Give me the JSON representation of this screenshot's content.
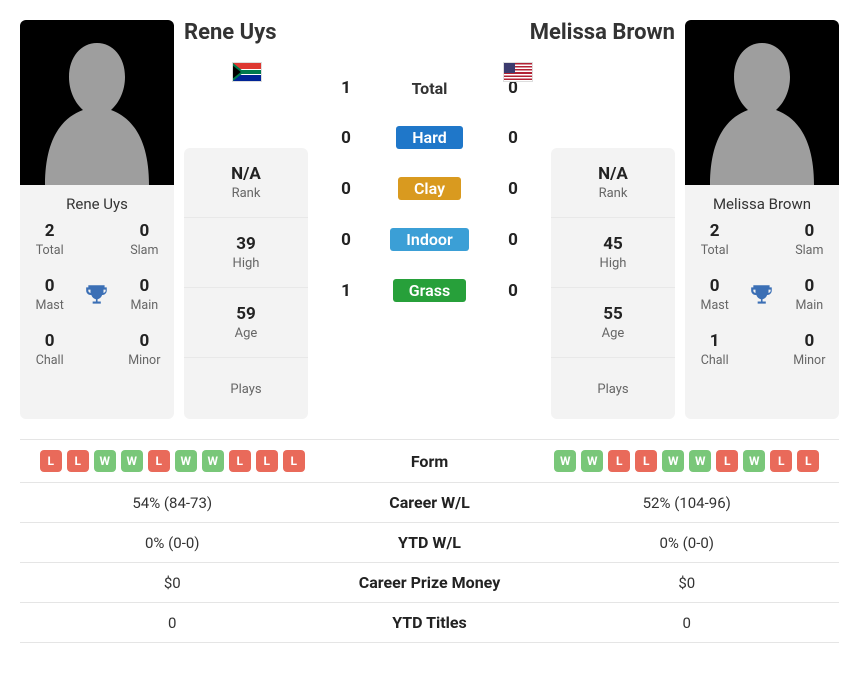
{
  "colors": {
    "hard": "#1f77c9",
    "clay": "#d99a1f",
    "indoor": "#3b9fd6",
    "grass": "#27a03a",
    "form_win": "#79c779",
    "form_loss": "#e96a5a",
    "trophy": "#3b6fb5",
    "silhouette": "#9e9e9e",
    "card_bg": "#f3f3f3"
  },
  "player1": {
    "name": "Rene Uys",
    "country_code": "ZA",
    "rank": "N/A",
    "high": "39",
    "age": "59",
    "plays": "",
    "titles": {
      "total": "2",
      "slam": "0",
      "mast": "0",
      "main": "0",
      "chall": "0",
      "minor": "0"
    },
    "form": [
      "L",
      "L",
      "W",
      "W",
      "L",
      "W",
      "W",
      "L",
      "L",
      "L"
    ],
    "career_wl": "54% (84-73)",
    "ytd_wl": "0% (0-0)",
    "prize": "$0",
    "ytd_titles": "0"
  },
  "player2": {
    "name": "Melissa Brown",
    "country_code": "US",
    "rank": "N/A",
    "high": "45",
    "age": "55",
    "plays": "",
    "titles": {
      "total": "2",
      "slam": "0",
      "mast": "0",
      "main": "0",
      "chall": "1",
      "minor": "0"
    },
    "form": [
      "W",
      "W",
      "L",
      "L",
      "W",
      "W",
      "L",
      "W",
      "L",
      "L"
    ],
    "career_wl": "52% (104-96)",
    "ytd_wl": "0% (0-0)",
    "prize": "$0",
    "ytd_titles": "0"
  },
  "h2h": {
    "total": {
      "label": "Total",
      "p1": "1",
      "p2": "0"
    },
    "surfaces": [
      {
        "label": "Hard",
        "color_key": "hard",
        "p1": "0",
        "p2": "0"
      },
      {
        "label": "Clay",
        "color_key": "clay",
        "p1": "0",
        "p2": "0"
      },
      {
        "label": "Indoor",
        "color_key": "indoor",
        "p1": "0",
        "p2": "0"
      },
      {
        "label": "Grass",
        "color_key": "grass",
        "p1": "1",
        "p2": "0"
      }
    ]
  },
  "labels": {
    "rank": "Rank",
    "high": "High",
    "age": "Age",
    "plays": "Plays",
    "total": "Total",
    "slam": "Slam",
    "mast": "Mast",
    "main": "Main",
    "chall": "Chall",
    "minor": "Minor",
    "form": "Form",
    "career_wl": "Career W/L",
    "ytd_wl": "YTD W/L",
    "prize": "Career Prize Money",
    "ytd_titles": "YTD Titles"
  }
}
